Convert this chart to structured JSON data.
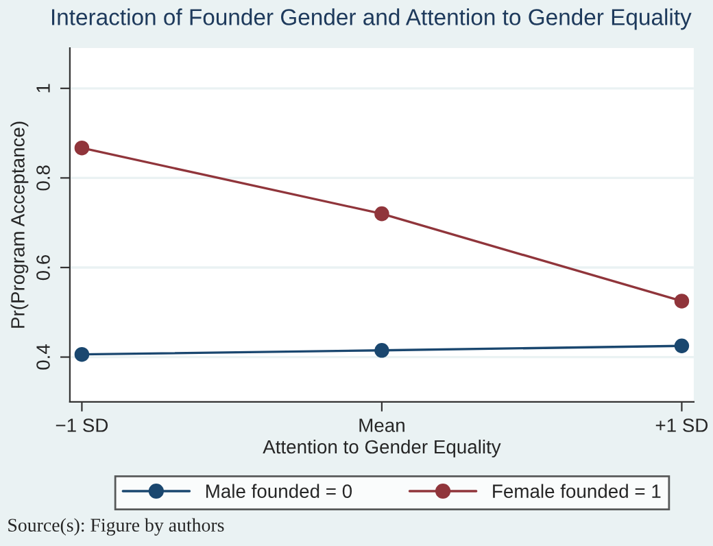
{
  "chart_data": {
    "type": "line",
    "title": "Interaction of Founder Gender and Attention to Gender Equality",
    "xlabel": "Attention to Gender Equality",
    "ylabel": "Pr(Program Acceptance)",
    "categories": [
      "−1 SD",
      "Mean",
      "+1 SD"
    ],
    "series": [
      {
        "name": "Male founded = 0",
        "color": "#1a476f",
        "values": [
          0.406,
          0.415,
          0.425
        ]
      },
      {
        "name": "Female founded = 1",
        "color": "#90353b",
        "values": [
          0.867,
          0.72,
          0.525
        ]
      }
    ],
    "ylim": [
      0.3,
      1.09
    ],
    "yticks": [
      {
        "value": 0.4,
        "label": "0.4"
      },
      {
        "value": 0.6,
        "label": "0.6"
      },
      {
        "value": 0.8,
        "label": "0.8"
      },
      1
    ],
    "grid": "y",
    "legend": "bottom",
    "marker": "circle",
    "line_style": "solid",
    "annotations": [
      "Source(s): Figure by authors"
    ]
  }
}
